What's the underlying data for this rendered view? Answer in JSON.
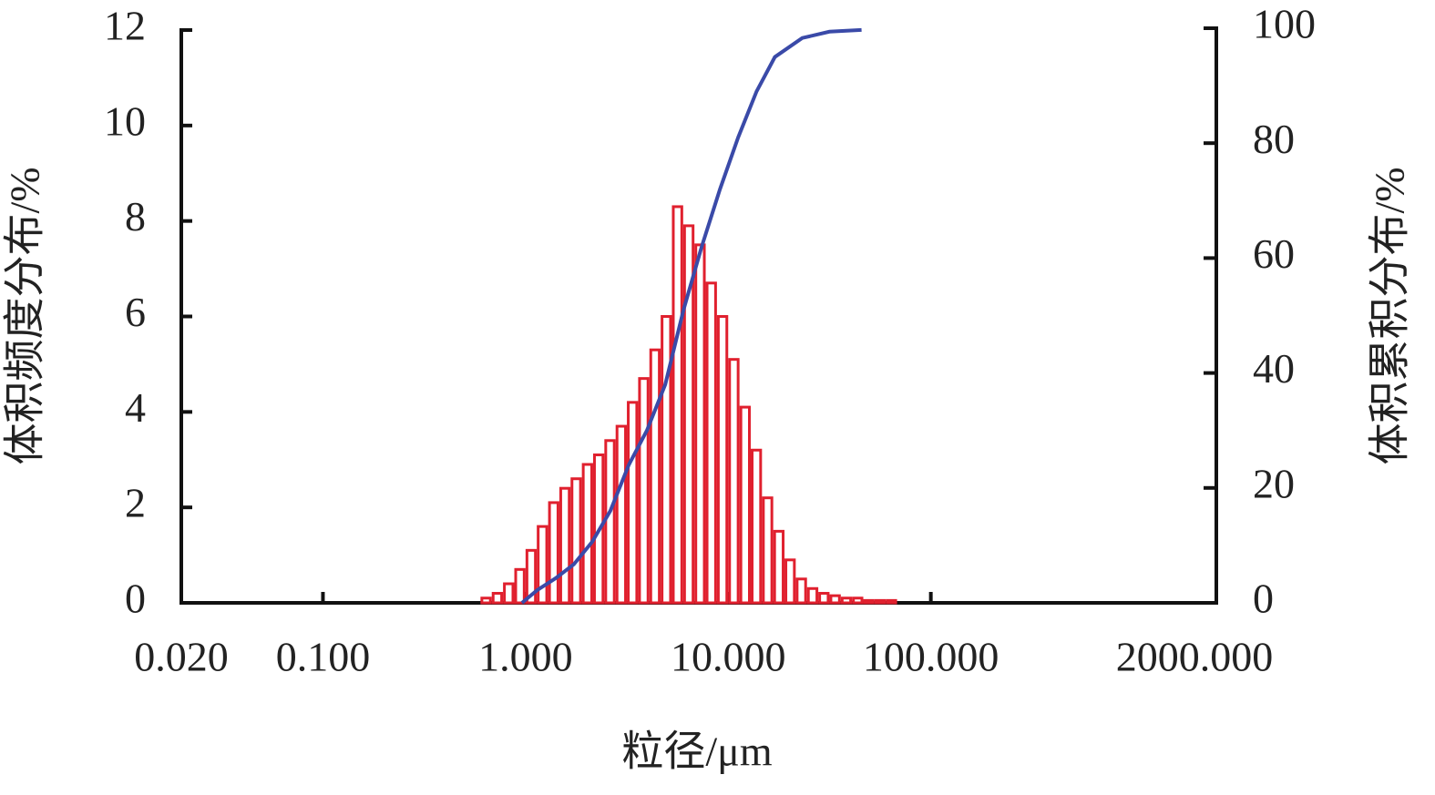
{
  "chart_data": {
    "type": "histogram",
    "x_label": "粒径/μm",
    "y_label": "体积频度分布/%",
    "y2_label": "体积累积分布/%",
    "xscale": "log",
    "xlim": [
      0.02,
      2000
    ],
    "xticks": [
      {
        "value": 0.02,
        "label": "0.020"
      },
      {
        "value": 0.1,
        "label": "0.100"
      },
      {
        "value": 1,
        "label": "1.000"
      },
      {
        "value": 10,
        "label": "10.000"
      },
      {
        "value": 100,
        "label": "100.000"
      },
      {
        "value": 2000,
        "label": "2000.000"
      }
    ],
    "ylim": [
      0,
      12
    ],
    "yticks": [
      0,
      2,
      4,
      6,
      8,
      10,
      12
    ],
    "y2lim": [
      0,
      100
    ],
    "y2ticks": [
      0,
      20,
      40,
      60,
      80,
      100
    ],
    "color": "#e0202e",
    "bins": [
      0.599,
      0.681,
      0.774,
      0.88,
      1.0,
      1.136,
      1.292,
      1.468,
      1.668,
      1.896,
      2.154,
      2.448,
      2.783,
      3.162,
      3.594,
      4.084,
      4.642,
      5.275,
      5.995,
      6.813,
      7.743,
      8.799,
      10.0,
      11.37,
      12.92,
      14.68,
      16.68,
      18.96,
      21.54,
      24.48,
      27.83,
      31.62,
      35.94,
      40.84,
      46.42,
      52.75,
      59.95,
      68.13
    ],
    "counts": [
      0.1,
      0.2,
      0.4,
      0.7,
      1.1,
      1.6,
      2.1,
      2.4,
      2.6,
      2.9,
      3.1,
      3.4,
      3.7,
      4.2,
      4.7,
      5.3,
      6.0,
      8.3,
      7.9,
      7.5,
      6.7,
      6.0,
      5.1,
      4.1,
      3.2,
      2.2,
      1.5,
      0.9,
      0.5,
      0.3,
      0.2,
      0.15,
      0.1,
      0.1,
      0.05,
      0.05,
      0.05
    ],
    "series": [
      {
        "type": "line",
        "axis": "y2",
        "color": "#3a4aa8",
        "x": [
          0.96,
          1.14,
          1.41,
          1.73,
          2.13,
          2.62,
          3.23,
          3.97,
          4.89,
          6.02,
          7.4,
          9.11,
          11.2,
          13.8,
          17.0,
          23.2,
          31.6,
          45.5
        ],
        "values": [
          0,
          2.2,
          4.3,
          6.7,
          10.6,
          16,
          24,
          30,
          38,
          51,
          62,
          72,
          81,
          89,
          95,
          98.3,
          99.4,
          99.7
        ]
      }
    ]
  }
}
